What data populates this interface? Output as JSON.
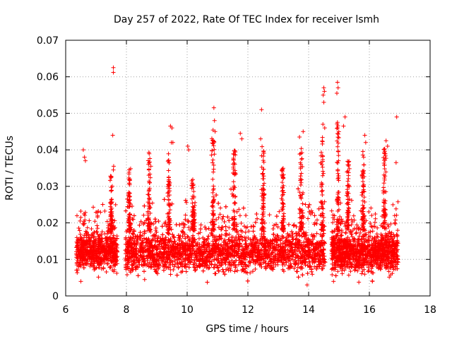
{
  "chart_data": {
    "type": "scatter",
    "title": "Day 257 of 2022, Rate Of TEC Index for receiver lsmh",
    "xlabel": "GPS time / hours",
    "ylabel": "ROTI / TECUs",
    "xlim": [
      6,
      18
    ],
    "ylim": [
      0,
      0.07
    ],
    "xticks": [
      6,
      8,
      10,
      12,
      14,
      16,
      18
    ],
    "xtick_labels": [
      "6",
      "8",
      "10",
      "12",
      "14",
      "16",
      "18"
    ],
    "yticks": [
      0,
      0.01,
      0.02,
      0.03,
      0.04,
      0.05,
      0.06,
      0.07
    ],
    "ytick_labels": [
      "0",
      "0.01",
      "0.02",
      "0.03",
      "0.04",
      "0.05",
      "0.06",
      "0.07"
    ],
    "grid": true,
    "marker": "+",
    "color": "#ff0000",
    "series": [
      {
        "name": "ROTI",
        "segments": [
          {
            "start": 6.35,
            "end": 7.7,
            "base": 0.012,
            "spread": 0.004
          },
          {
            "start": 7.95,
            "end": 14.55,
            "base": 0.012,
            "spread": 0.0045
          },
          {
            "start": 14.75,
            "end": 16.95,
            "base": 0.012,
            "spread": 0.0045
          }
        ],
        "highlights": [
          {
            "x": 7.57,
            "y": 0.0625
          },
          {
            "x": 7.57,
            "y": 0.0612
          },
          {
            "x": 7.55,
            "y": 0.044
          },
          {
            "x": 7.58,
            "y": 0.0355
          },
          {
            "x": 7.57,
            "y": 0.0345
          },
          {
            "x": 6.58,
            "y": 0.04
          },
          {
            "x": 6.62,
            "y": 0.038
          },
          {
            "x": 6.65,
            "y": 0.037
          },
          {
            "x": 9.45,
            "y": 0.0465
          },
          {
            "x": 9.5,
            "y": 0.046
          },
          {
            "x": 9.48,
            "y": 0.042
          },
          {
            "x": 9.53,
            "y": 0.042
          },
          {
            "x": 10.02,
            "y": 0.041
          },
          {
            "x": 10.05,
            "y": 0.04
          },
          {
            "x": 10.88,
            "y": 0.0515
          },
          {
            "x": 10.9,
            "y": 0.048
          },
          {
            "x": 10.92,
            "y": 0.045
          },
          {
            "x": 11.75,
            "y": 0.0445
          },
          {
            "x": 11.8,
            "y": 0.043
          },
          {
            "x": 12.45,
            "y": 0.051
          },
          {
            "x": 12.42,
            "y": 0.043
          },
          {
            "x": 13.82,
            "y": 0.045
          },
          {
            "x": 13.7,
            "y": 0.0435
          },
          {
            "x": 14.5,
            "y": 0.057
          },
          {
            "x": 14.52,
            "y": 0.056
          },
          {
            "x": 14.48,
            "y": 0.055
          },
          {
            "x": 14.5,
            "y": 0.053
          },
          {
            "x": 14.47,
            "y": 0.047
          },
          {
            "x": 14.53,
            "y": 0.046
          },
          {
            "x": 14.95,
            "y": 0.0585
          },
          {
            "x": 14.97,
            "y": 0.057
          },
          {
            "x": 14.93,
            "y": 0.0555
          },
          {
            "x": 15.2,
            "y": 0.049
          },
          {
            "x": 15.15,
            "y": 0.0465
          },
          {
            "x": 15.85,
            "y": 0.044
          },
          {
            "x": 15.88,
            "y": 0.042
          },
          {
            "x": 16.55,
            "y": 0.0425
          },
          {
            "x": 16.6,
            "y": 0.041
          },
          {
            "x": 16.9,
            "y": 0.049
          },
          {
            "x": 16.88,
            "y": 0.0365
          },
          {
            "x": 14.9,
            "y": 0.0055
          },
          {
            "x": 14.82,
            "y": 0.004
          },
          {
            "x": 8.6,
            "y": 0.0045
          },
          {
            "x": 13.95,
            "y": 0.003
          },
          {
            "x": 16.1,
            "y": 0.004
          },
          {
            "x": 6.5,
            "y": 0.004
          }
        ],
        "bursts": [
          {
            "x": 7.5,
            "peak": 0.034
          },
          {
            "x": 8.1,
            "peak": 0.035
          },
          {
            "x": 8.75,
            "peak": 0.04
          },
          {
            "x": 9.4,
            "peak": 0.039
          },
          {
            "x": 10.2,
            "peak": 0.032
          },
          {
            "x": 10.85,
            "peak": 0.046
          },
          {
            "x": 11.55,
            "peak": 0.04
          },
          {
            "x": 12.5,
            "peak": 0.041
          },
          {
            "x": 13.15,
            "peak": 0.035
          },
          {
            "x": 13.75,
            "peak": 0.042
          },
          {
            "x": 14.45,
            "peak": 0.045
          },
          {
            "x": 14.97,
            "peak": 0.048
          },
          {
            "x": 15.3,
            "peak": 0.038
          },
          {
            "x": 15.8,
            "peak": 0.04
          },
          {
            "x": 16.5,
            "peak": 0.041
          }
        ]
      }
    ]
  }
}
